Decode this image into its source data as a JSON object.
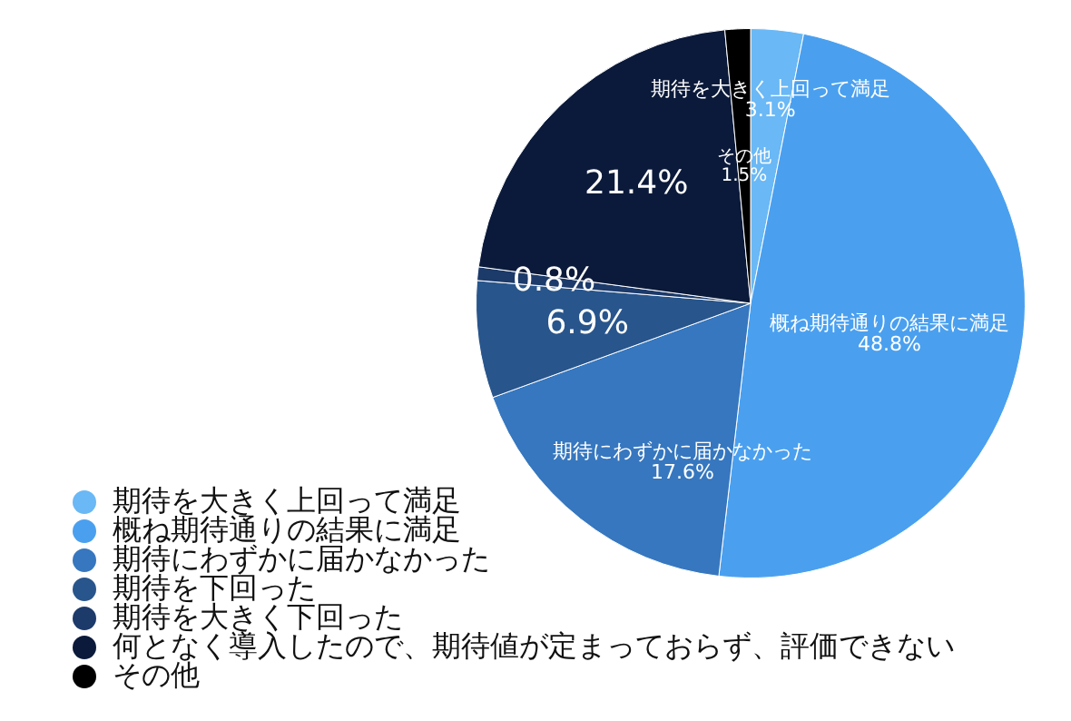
{
  "chart_data": {
    "type": "pie",
    "categories": [
      "期待を大きく上回って満足",
      "概ね期待通りの結果に満足",
      "期待にわずかに届かなかった",
      "期待を下回った",
      "期待を大きく下回った",
      "何となく導入したので、期待値が定まっておらず、評価できない",
      "その他"
    ],
    "values": [
      3.1,
      48.8,
      17.6,
      6.9,
      0.8,
      21.4,
      1.5
    ],
    "colors": [
      "#6ab8f5",
      "#4aa0ef",
      "#3677bf",
      "#28558c",
      "#1c3a6a",
      "#0b1a3a",
      "#000000"
    ],
    "value_labels": [
      "期待を大きく上回って満足\n3.1%",
      "概ね期待通りの結果に満足\n48.8%",
      "期待にわずかに届かなかった\n17.6%",
      "6.9%",
      "0.8%",
      "21.4%",
      "その他\n1.5%"
    ],
    "legend": "bottom left"
  }
}
